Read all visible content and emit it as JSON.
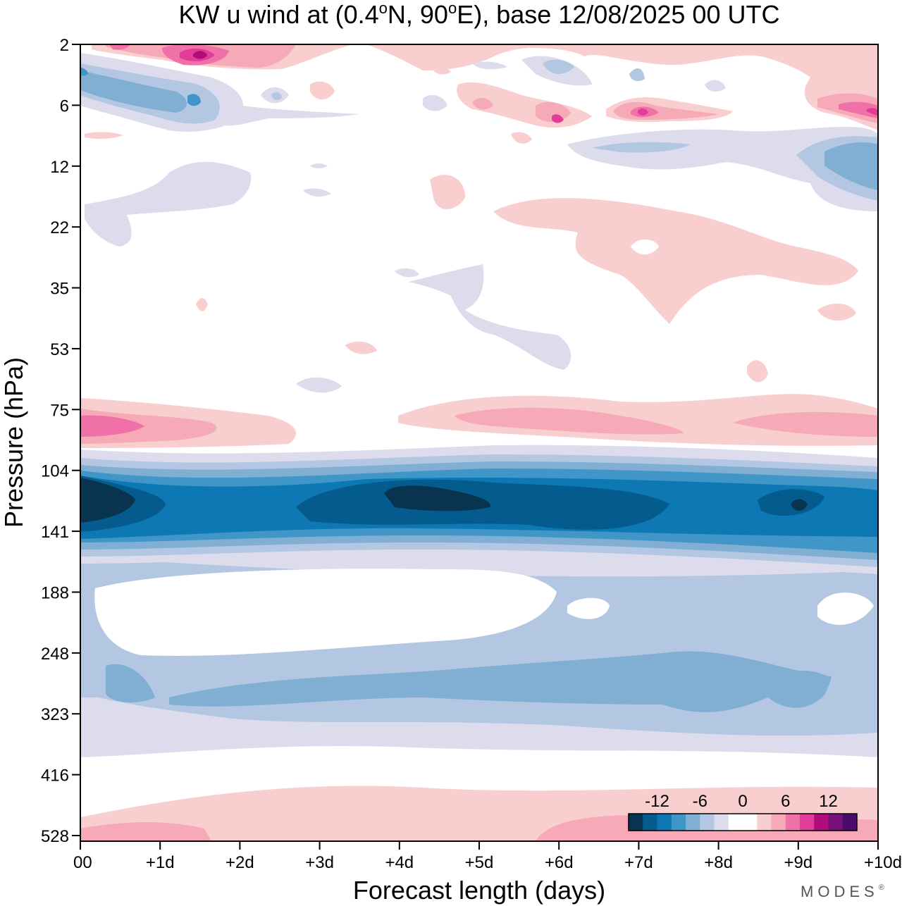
{
  "chart_data": {
    "type": "heatmap",
    "title_parts": {
      "prefix": "KW u wind at (0.4",
      "deg1": "o",
      "mid": "N, 90",
      "deg2": "o",
      "suffix": "E),  base 12/08/2025  00 UTC"
    },
    "xlabel": "Forecast length (days)",
    "ylabel": "Pressure (hPa)",
    "x_ticks": [
      "00",
      "+1d",
      "+2d",
      "+3d",
      "+4d",
      "+5d",
      "+6d",
      "+7d",
      "+8d",
      "+9d",
      "+10d"
    ],
    "x_range_days": [
      0,
      10
    ],
    "y_ticks": [
      "2",
      "6",
      "12",
      "22",
      "35",
      "53",
      "75",
      "104",
      "141",
      "188",
      "248",
      "323",
      "416",
      "528"
    ],
    "colorbar": {
      "labels": [
        "-12",
        "-6",
        "0",
        "6",
        "12"
      ],
      "colors": [
        "#08344f",
        "#045c8e",
        "#0e78b4",
        "#4096c6",
        "#80afd3",
        "#b4c7e2",
        "#dcdced",
        "#ffffff",
        "#ffffff",
        "#f8cece",
        "#f6aab8",
        "#f071a8",
        "#e03c98",
        "#b10b7c",
        "#781079",
        "#4a0b6d"
      ]
    },
    "fields": [
      {
        "level_index": [
          7.6,
          8.8
        ],
        "u_min": -14,
        "description": "strong easterly core centred near 120 hPa"
      },
      {
        "level_index": [
          9.6,
          12.2
        ],
        "u_min": -5,
        "description": "weak easterlies 250-400 hPa"
      },
      {
        "level_index": [
          6.9,
          7.1
        ],
        "u_max": 8,
        "description": "westerly band near 85 hPa"
      },
      {
        "level_index": [
          12.7,
          13.3
        ],
        "u_max": 5,
        "description": "westerlies near 550 hPa"
      },
      {
        "level_index": [
          0,
          1.5
        ],
        "u_max": 14,
        "description": "variable winds 2-8 hPa"
      }
    ],
    "brand": "MODES",
    "brand_mark": "®"
  }
}
